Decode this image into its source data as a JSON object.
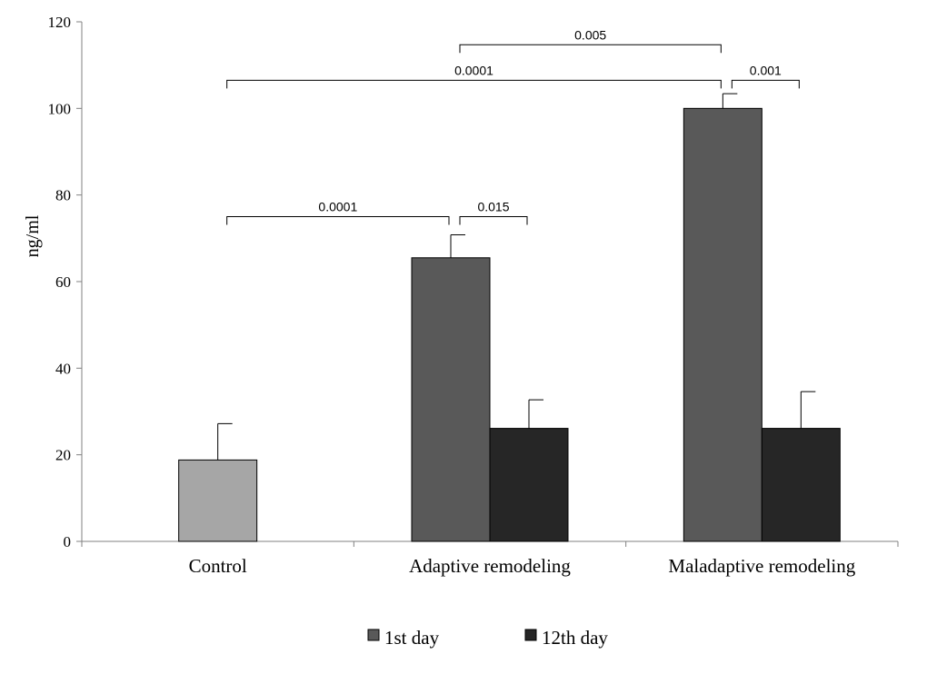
{
  "chart_data": {
    "type": "bar",
    "title": "",
    "xlabel": "",
    "ylabel": "ng/ml",
    "ylim": [
      0,
      120
    ],
    "yticks": [
      0,
      20,
      40,
      60,
      80,
      100,
      120
    ],
    "grid": false,
    "legend_position": "bottom-center",
    "categories": [
      "Control",
      "Adaptive remodeling",
      "Maladaptive remodeling"
    ],
    "series": [
      {
        "name": "Control",
        "color": "#a6a6a6",
        "show_in_legend": false,
        "values": [
          18.8,
          null,
          null
        ],
        "errors": [
          8.4,
          null,
          null
        ]
      },
      {
        "name": "1st day",
        "color": "#595959",
        "show_in_legend": true,
        "values": [
          null,
          65.5,
          100
        ],
        "errors": [
          null,
          5.3,
          3.4
        ]
      },
      {
        "name": "12th day",
        "color": "#262626",
        "show_in_legend": true,
        "values": [
          null,
          26.1,
          26.1
        ],
        "errors": [
          null,
          6.6,
          8.5
        ]
      }
    ],
    "significance": [
      {
        "from": [
          "Control",
          "Control"
        ],
        "to": [
          "Adaptive remodeling",
          "1st day"
        ],
        "label": "0.0001",
        "y": 75
      },
      {
        "from": [
          "Adaptive remodeling",
          "1st day"
        ],
        "to": [
          "Adaptive remodeling",
          "12th day"
        ],
        "label": "0.015",
        "y": 75
      },
      {
        "from": [
          "Control",
          "Control"
        ],
        "to": [
          "Maladaptive remodeling",
          "1st day"
        ],
        "label": "0.0001",
        "y": 106.5
      },
      {
        "from": [
          "Maladaptive remodeling",
          "1st day"
        ],
        "to": [
          "Maladaptive remodeling",
          "12th day"
        ],
        "label": "0.001",
        "y": 106.5
      },
      {
        "from": [
          "Adaptive remodeling",
          "1st day"
        ],
        "to": [
          "Maladaptive remodeling",
          "1st day"
        ],
        "label": "0.005",
        "y": 114.7
      }
    ]
  }
}
